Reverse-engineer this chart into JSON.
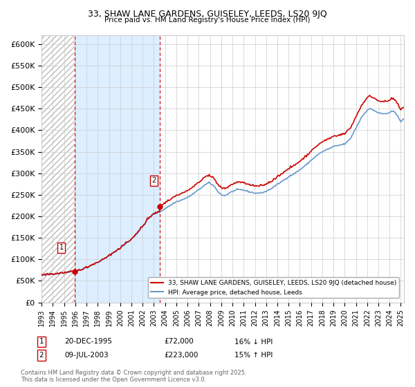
{
  "title1": "33, SHAW LANE GARDENS, GUISELEY, LEEDS, LS20 9JQ",
  "title2": "Price paid vs. HM Land Registry's House Price Index (HPI)",
  "ylim": [
    0,
    620000
  ],
  "yticks": [
    0,
    50000,
    100000,
    150000,
    200000,
    250000,
    300000,
    350000,
    400000,
    450000,
    500000,
    550000,
    600000
  ],
  "ytick_labels": [
    "£0",
    "£50K",
    "£100K",
    "£150K",
    "£200K",
    "£250K",
    "£300K",
    "£350K",
    "£400K",
    "£450K",
    "£500K",
    "£550K",
    "£600K"
  ],
  "sale1_date": "20-DEC-1995",
  "sale1_price": 72000,
  "sale2_date": "09-JUL-2003",
  "sale2_price": 223000,
  "sale1_hpi_pct": "16% ↓ HPI",
  "sale2_hpi_pct": "15% ↑ HPI",
  "legend_line1": "33, SHAW LANE GARDENS, GUISELEY, LEEDS, LS20 9JQ (detached house)",
  "legend_line2": "HPI: Average price, detached house, Leeds",
  "footnote": "Contains HM Land Registry data © Crown copyright and database right 2025.\nThis data is licensed under the Open Government Licence v3.0.",
  "red_color": "#cc0000",
  "blue_color": "#6699cc",
  "blue_fill_color": "#ddeeff",
  "hatch_color": "#bbbbbb",
  "bg_color": "#ffffff",
  "grid_color": "#cccccc",
  "sale1_x": 1995.97,
  "sale2_x": 2003.52,
  "xmin": 1993.0,
  "xmax": 2025.3
}
